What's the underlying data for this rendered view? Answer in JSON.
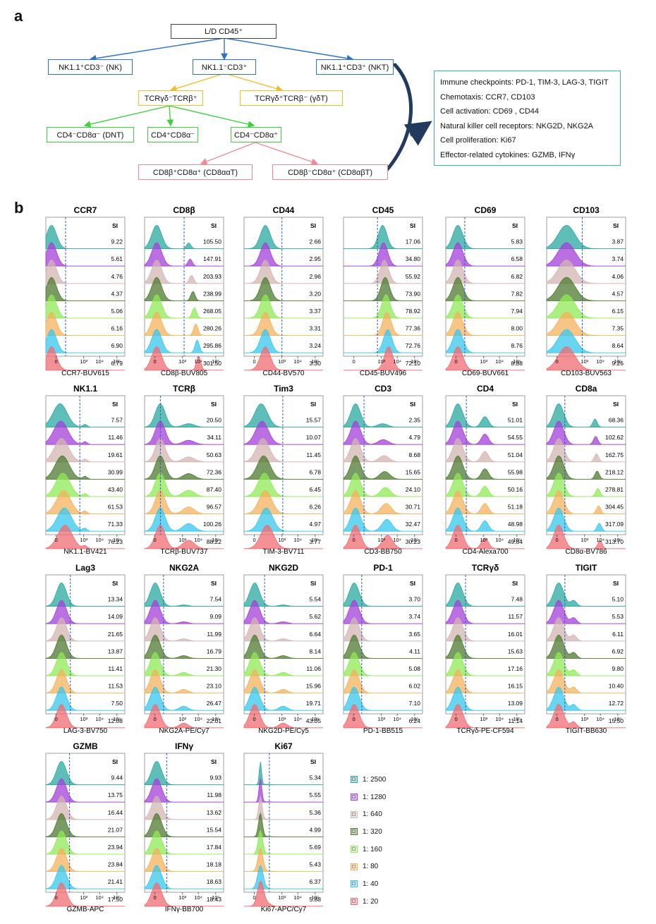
{
  "panel_a": {
    "letter": "a",
    "root": "L/D CD45⁺",
    "nk": "NK1.1⁺CD3⁻ (NK)",
    "nk1cd3neg": "NK1.1⁻CD3⁺",
    "nkt": "NK1.1⁺CD3⁺ (NKT)",
    "tcrgd_neg": "TCRγδ⁻TCRβ⁺",
    "gdt": "TCRγδ⁺TCRβ⁻ (γδT)",
    "dnt": "CD4⁻CD8α⁻ (DNT)",
    "cd4": "CD4⁺CD8α⁻",
    "cd8": "CD4⁻CD8α⁺",
    "cd8aa": "CD8β⁺CD8α⁺ (CD8ααT)",
    "cd8ab": "CD8β⁻CD8α⁺ (CD8αβT)",
    "markers": [
      "Immune checkpoints: PD-1, TIM-3, LAG-3, TIGIT",
      "Chemotaxis: CCR7, CD103",
      "Cell activation:  CD69 , CD44",
      "Natural killer cell receptors: NKG2D, NKG2A",
      "Cell proliferation:  Ki67",
      "Effector-related cytokines: GZMB, IFNγ"
    ]
  },
  "panel_b": {
    "letter": "b",
    "si_label": "SI",
    "colors": [
      "#2aa9a0",
      "#a340d8",
      "#d3b5b2",
      "#4e7a30",
      "#8fea55",
      "#f4b25c",
      "#38c7eb",
      "#f06c73"
    ],
    "legend": [
      "1: 2500",
      "1: 1280",
      "1: 640",
      "1: 320",
      "1: 160",
      "1: 80",
      "1: 40",
      "1: 20"
    ],
    "plots": [
      {
        "title": "CCR7",
        "xlabel": "CCR7-BUV615",
        "si": [
          "9.22",
          "5.61",
          "4.76",
          "4.37",
          "5.06",
          "6.16",
          "6.90",
          "6.79"
        ]
      },
      {
        "title": "CD8β",
        "xlabel": "CD8β-BUV805",
        "si": [
          "105.50",
          "147.91",
          "203.93",
          "238.99",
          "268.05",
          "280.26",
          "295.86",
          "301.50"
        ]
      },
      {
        "title": "CD44",
        "xlabel": "CD44-BV570",
        "si": [
          "2.66",
          "2.95",
          "2.96",
          "3.20",
          "3.37",
          "3.31",
          "3.24",
          "3.30"
        ]
      },
      {
        "title": "CD45",
        "xlabel": "CD45-BUV496",
        "si": [
          "17.06",
          "34.80",
          "55.92",
          "73.90",
          "78.92",
          "77.36",
          "72.76",
          "72.10"
        ]
      },
      {
        "title": "CD69",
        "xlabel": "CD69-BUV661",
        "si": [
          "5.83",
          "6.58",
          "6.82",
          "7.82",
          "7.94",
          "8.00",
          "8.76",
          "8.88"
        ]
      },
      {
        "title": "CD103",
        "xlabel": "CD103-BUV563",
        "si": [
          "3.87",
          "3.74",
          "4.06",
          "4.57",
          "6.15",
          "7.35",
          "8.64",
          "9.26"
        ]
      },
      {
        "title": "NK1.1",
        "xlabel": "NK1.1-BV421",
        "si": [
          "7.57",
          "11.46",
          "19.61",
          "30.99",
          "43.40",
          "61.53",
          "71.33",
          "76.23"
        ]
      },
      {
        "title": "TCRβ",
        "xlabel": "TCRβ-BUV737",
        "si": [
          "20.50",
          "34.11",
          "50.63",
          "72.36",
          "87.40",
          "96.57",
          "100.26",
          "88.22"
        ]
      },
      {
        "title": "Tim3",
        "xlabel": "TIM-3-BV711",
        "si": [
          "15.57",
          "10.07",
          "11.45",
          "6.78",
          "6.45",
          "6.26",
          "4.97",
          "3.77"
        ]
      },
      {
        "title": "CD3",
        "xlabel": "CD3-BB750",
        "si": [
          "2.35",
          "4.79",
          "8.68",
          "15.65",
          "24.10",
          "30.71",
          "32.47",
          "30.23"
        ]
      },
      {
        "title": "CD4",
        "xlabel": "CD4-Alexa700",
        "si": [
          "51.01",
          "54.55",
          "51.04",
          "55.98",
          "50.16",
          "51.18",
          "48.98",
          "49.84"
        ]
      },
      {
        "title": "CD8a",
        "xlabel": "CD8α-BV786",
        "si": [
          "68.36",
          "102.62",
          "162.75",
          "218.12",
          "278.81",
          "304.45",
          "317.09",
          "313.70"
        ]
      },
      {
        "title": "Lag3",
        "xlabel": "LAG-3-BV750",
        "si": [
          "13.34",
          "14.09",
          "21.65",
          "13.87",
          "11.41",
          "11.53",
          "7.50",
          "12.08"
        ]
      },
      {
        "title": "NKG2A",
        "xlabel": "NKG2A-PE/Cy7",
        "si": [
          "7.54",
          "9.09",
          "11.99",
          "16.79",
          "21.30",
          "23.10",
          "26.47",
          "22.01"
        ]
      },
      {
        "title": "NKG2D",
        "xlabel": "NKG2D-PE/Cy5",
        "si": [
          "5.54",
          "5.62",
          "6.64",
          "8.14",
          "11.06",
          "15.96",
          "19.71",
          "43.05"
        ]
      },
      {
        "title": "PD-1",
        "xlabel": "PD-1-BB515",
        "si": [
          "3.70",
          "3.74",
          "3.65",
          "4.11",
          "5.08",
          "6.02",
          "7.10",
          "6.24"
        ]
      },
      {
        "title": "TCRγδ",
        "xlabel": "TCRγδ-PE-CF594",
        "si": [
          "7.48",
          "11.57",
          "16.01",
          "15.63",
          "17.16",
          "16.15",
          "13.09",
          "11.14"
        ]
      },
      {
        "title": "TIGIT",
        "xlabel": "TIGIT-BB630",
        "si": [
          "5.10",
          "5.53",
          "6.11",
          "6.92",
          "9.80",
          "10.40",
          "12.72",
          "15.50"
        ]
      },
      {
        "title": "GZMB",
        "xlabel": "GZMB-APC",
        "si": [
          "9.44",
          "13.75",
          "16.44",
          "21.07",
          "23.94",
          "23.84",
          "21.41",
          "17.50"
        ]
      },
      {
        "title": "IFNγ",
        "xlabel": "IFNγ-BB700",
        "si": [
          "9.93",
          "11.98",
          "13.62",
          "15.54",
          "17.84",
          "18.18",
          "18.63",
          "18.43"
        ]
      },
      {
        "title": "Ki67",
        "xlabel": "Ki67-APC/Cy7",
        "si": [
          "5.34",
          "5.55",
          "5.36",
          "4.99",
          "5.69",
          "5.43",
          "6.37",
          "5.88"
        ]
      }
    ]
  }
}
